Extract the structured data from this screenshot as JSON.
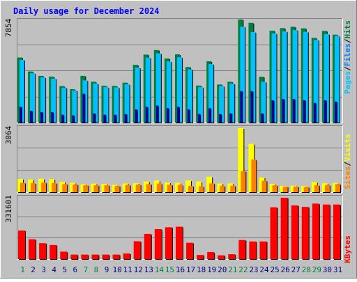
{
  "title": "Daily usage for December 2024",
  "colors": {
    "hits": "#008040",
    "files": "#0080ff",
    "pages": "#00c0ff",
    "visits": "#ffff00",
    "sites": "#ff8000",
    "kbytes": "#ff0000",
    "weekend_label": "#008040",
    "weekday_label": "#000080",
    "title": "#0000ff",
    "panel_bg": "#c0c0c0"
  },
  "chart_data": [
    {
      "type": "bar",
      "title": "Daily usage for December 2024",
      "x": [
        "1",
        "2",
        "3",
        "4",
        "5",
        "6",
        "7",
        "8",
        "9",
        "10",
        "11",
        "12",
        "13",
        "14",
        "15",
        "16",
        "17",
        "18",
        "19",
        "20",
        "21",
        "22",
        "23",
        "24",
        "25",
        "26",
        "27",
        "28",
        "29",
        "30",
        "31"
      ],
      "weekend_days": [
        "1",
        "7",
        "8",
        "14",
        "15",
        "21",
        "22",
        "28",
        "29"
      ],
      "ylabel_ticks": "7854",
      "ylim": [
        0,
        7854
      ],
      "legend": [
        "Pages",
        "Files",
        "Hits"
      ],
      "series": [
        {
          "name": "Hits",
          "values": [
            4960,
            3890,
            3560,
            3500,
            2780,
            2550,
            3560,
            3110,
            2800,
            2790,
            3040,
            4400,
            5180,
            5530,
            4880,
            5200,
            4230,
            2820,
            4670,
            2900,
            3110,
            7854,
            7600,
            3490,
            7000,
            7200,
            7300,
            7180,
            6450,
            6980,
            6700
          ]
        },
        {
          "name": "Files",
          "values": [
            4780,
            3760,
            3440,
            3350,
            2660,
            2440,
            3220,
            2980,
            2700,
            2680,
            2920,
            4190,
            4950,
            5270,
            4660,
            4980,
            4060,
            2700,
            4450,
            2780,
            2970,
            7300,
            6900,
            3100,
            6800,
            6950,
            7050,
            6920,
            6300,
            6750,
            6600
          ]
        },
        {
          "name": "Pages",
          "values": [
            1200,
            900,
            800,
            800,
            600,
            550,
            2200,
            700,
            600,
            600,
            650,
            1000,
            1200,
            1300,
            1100,
            1200,
            1000,
            650,
            1100,
            650,
            700,
            2400,
            2400,
            700,
            1700,
            1800,
            1800,
            1700,
            1500,
            1700,
            1600
          ]
        }
      ]
    },
    {
      "type": "bar",
      "x": [
        "1",
        "2",
        "3",
        "4",
        "5",
        "6",
        "7",
        "8",
        "9",
        "10",
        "11",
        "12",
        "13",
        "14",
        "15",
        "16",
        "17",
        "18",
        "19",
        "20",
        "21",
        "22",
        "23",
        "24",
        "25",
        "26",
        "27",
        "28",
        "29",
        "30",
        "31"
      ],
      "ylabel_ticks": "3064",
      "ylim": [
        0,
        3064
      ],
      "legend": [
        "Sites",
        "Visits"
      ],
      "series": [
        {
          "name": "Visits",
          "values": [
            630,
            610,
            640,
            620,
            500,
            450,
            380,
            410,
            400,
            350,
            420,
            430,
            510,
            560,
            460,
            450,
            560,
            510,
            740,
            420,
            420,
            3064,
            2310,
            700,
            400,
            300,
            310,
            290,
            480,
            430,
            440
          ]
        },
        {
          "name": "Sites",
          "values": [
            450,
            430,
            460,
            440,
            390,
            370,
            330,
            330,
            330,
            300,
            350,
            360,
            390,
            410,
            360,
            350,
            300,
            280,
            420,
            300,
            310,
            1000,
            1560,
            550,
            330,
            260,
            270,
            250,
            330,
            340,
            390
          ]
        }
      ]
    },
    {
      "type": "bar",
      "x": [
        "1",
        "2",
        "3",
        "4",
        "5",
        "6",
        "7",
        "8",
        "9",
        "10",
        "11",
        "12",
        "13",
        "14",
        "15",
        "16",
        "17",
        "18",
        "19",
        "20",
        "21",
        "22",
        "23",
        "24",
        "25",
        "26",
        "27",
        "28",
        "29",
        "30",
        "31"
      ],
      "ylabel_ticks": "331601",
      "ylim": [
        0,
        331601
      ],
      "legend": [
        "KBytes"
      ],
      "series": [
        {
          "name": "KBytes",
          "values": [
            154000,
            107000,
            86000,
            76000,
            40000,
            24000,
            24000,
            24000,
            24000,
            24000,
            30000,
            96000,
            136000,
            162000,
            172000,
            175000,
            88000,
            22000,
            38000,
            20000,
            26000,
            103000,
            95000,
            95000,
            280000,
            331601,
            290000,
            282000,
            300000,
            295000,
            295000
          ]
        }
      ]
    }
  ]
}
